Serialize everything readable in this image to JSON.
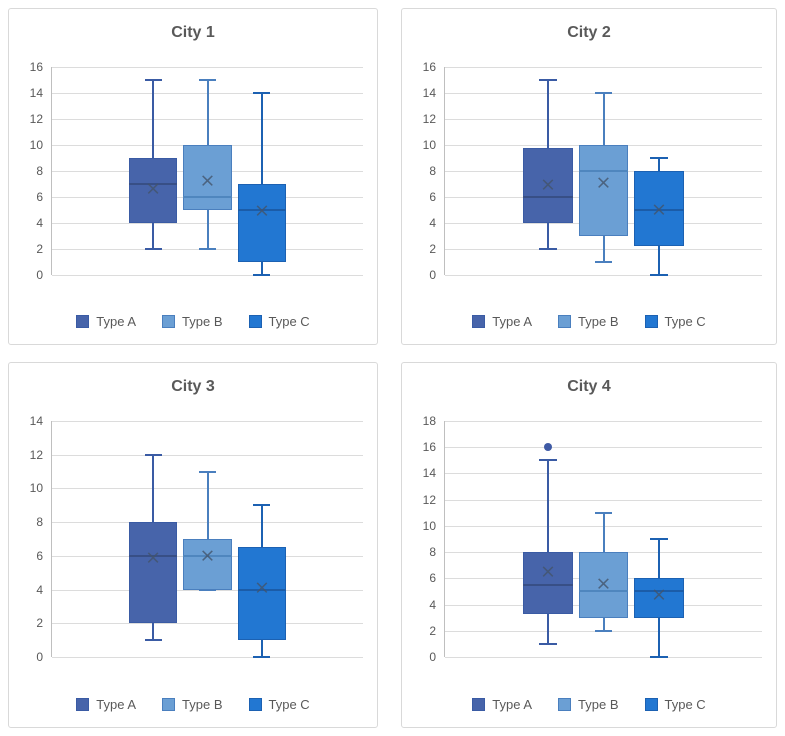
{
  "colors": {
    "series": [
      {
        "name": "Type A",
        "fill": "#4764AA",
        "stroke": "#3A5BA4",
        "median": "#384F86"
      },
      {
        "name": "Type B",
        "fill": "#6B9FD4",
        "stroke": "#4A7FBE",
        "median": "#4F86BE"
      },
      {
        "name": "Type C",
        "fill": "#2277D2",
        "stroke": "#1C61B2",
        "median": "#1B5CA8"
      }
    ],
    "mean_marker": "#44546A",
    "outlier": "#3F5AA5",
    "gridline": "#DCDCDC",
    "axis_line": "#BFBFBF",
    "panel_border": "#D9D9D9",
    "title_text": "#595959",
    "tick_text": "#595959",
    "legend_text": "#595959",
    "background": "#FFFFFF"
  },
  "chart_data": [
    {
      "type": "box",
      "title": "City 1",
      "ylim": [
        0,
        16
      ],
      "ytick_step": 2,
      "yticks": [
        0,
        2,
        4,
        6,
        8,
        10,
        12,
        14,
        16
      ],
      "categories": [
        "Type A",
        "Type B",
        "Type C"
      ],
      "legend": [
        "Type A",
        "Type B",
        "Type C"
      ],
      "legend_position": "bottom",
      "grid": true,
      "series": [
        {
          "name": "Type A",
          "min": 2,
          "q1": 4,
          "median": 7,
          "q3": 9,
          "max": 15,
          "mean": 6.6,
          "outliers": []
        },
        {
          "name": "Type B",
          "min": 2,
          "q1": 5,
          "median": 6,
          "q3": 10,
          "max": 15,
          "mean": 7.2,
          "outliers": []
        },
        {
          "name": "Type C",
          "min": 0,
          "q1": 1,
          "median": 5,
          "q3": 7,
          "max": 14,
          "mean": 4.9,
          "outliers": []
        }
      ]
    },
    {
      "type": "box",
      "title": "City 2",
      "ylim": [
        0,
        16
      ],
      "ytick_step": 2,
      "yticks": [
        0,
        2,
        4,
        6,
        8,
        10,
        12,
        14,
        16
      ],
      "categories": [
        "Type A",
        "Type B",
        "Type C"
      ],
      "legend": [
        "Type A",
        "Type B",
        "Type C"
      ],
      "legend_position": "bottom",
      "grid": true,
      "series": [
        {
          "name": "Type A",
          "min": 2,
          "q1": 4,
          "median": 6,
          "q3": 9.75,
          "max": 15,
          "mean": 6.9,
          "outliers": []
        },
        {
          "name": "Type B",
          "min": 1,
          "q1": 3,
          "median": 8,
          "q3": 10,
          "max": 14,
          "mean": 7.1,
          "outliers": []
        },
        {
          "name": "Type C",
          "min": 0,
          "q1": 2.25,
          "median": 5,
          "q3": 8,
          "max": 9,
          "mean": 5.0,
          "outliers": []
        }
      ]
    },
    {
      "type": "box",
      "title": "City 3",
      "ylim": [
        0,
        14
      ],
      "ytick_step": 2,
      "yticks": [
        0,
        2,
        4,
        6,
        8,
        10,
        12,
        14
      ],
      "categories": [
        "Type A",
        "Type B",
        "Type C"
      ],
      "legend": [
        "Type A",
        "Type B",
        "Type C"
      ],
      "legend_position": "bottom",
      "grid": true,
      "series": [
        {
          "name": "Type A",
          "min": 1,
          "q1": 2,
          "median": 6,
          "q3": 8,
          "max": 12,
          "mean": 5.9,
          "outliers": []
        },
        {
          "name": "Type B",
          "min": 4,
          "q1": 4,
          "median": 6,
          "q3": 7,
          "max": 11,
          "mean": 6.0,
          "outliers": []
        },
        {
          "name": "Type C",
          "min": 0,
          "q1": 1,
          "median": 4,
          "q3": 6.5,
          "max": 9,
          "mean": 4.1,
          "outliers": []
        }
      ]
    },
    {
      "type": "box",
      "title": "City 4",
      "ylim": [
        0,
        18
      ],
      "ytick_step": 2,
      "yticks": [
        0,
        2,
        4,
        6,
        8,
        10,
        12,
        14,
        16,
        18
      ],
      "categories": [
        "Type A",
        "Type B",
        "Type C"
      ],
      "legend": [
        "Type A",
        "Type B",
        "Type C"
      ],
      "legend_position": "bottom",
      "grid": true,
      "series": [
        {
          "name": "Type A",
          "min": 1,
          "q1": 3.25,
          "median": 5.5,
          "q3": 8,
          "max": 15,
          "mean": 6.5,
          "outliers": [
            16
          ]
        },
        {
          "name": "Type B",
          "min": 2,
          "q1": 3,
          "median": 5,
          "q3": 8,
          "max": 11,
          "mean": 5.6,
          "outliers": []
        },
        {
          "name": "Type C",
          "min": 0,
          "q1": 3,
          "median": 5,
          "q3": 6,
          "max": 9,
          "mean": 4.7,
          "outliers": []
        }
      ]
    }
  ]
}
